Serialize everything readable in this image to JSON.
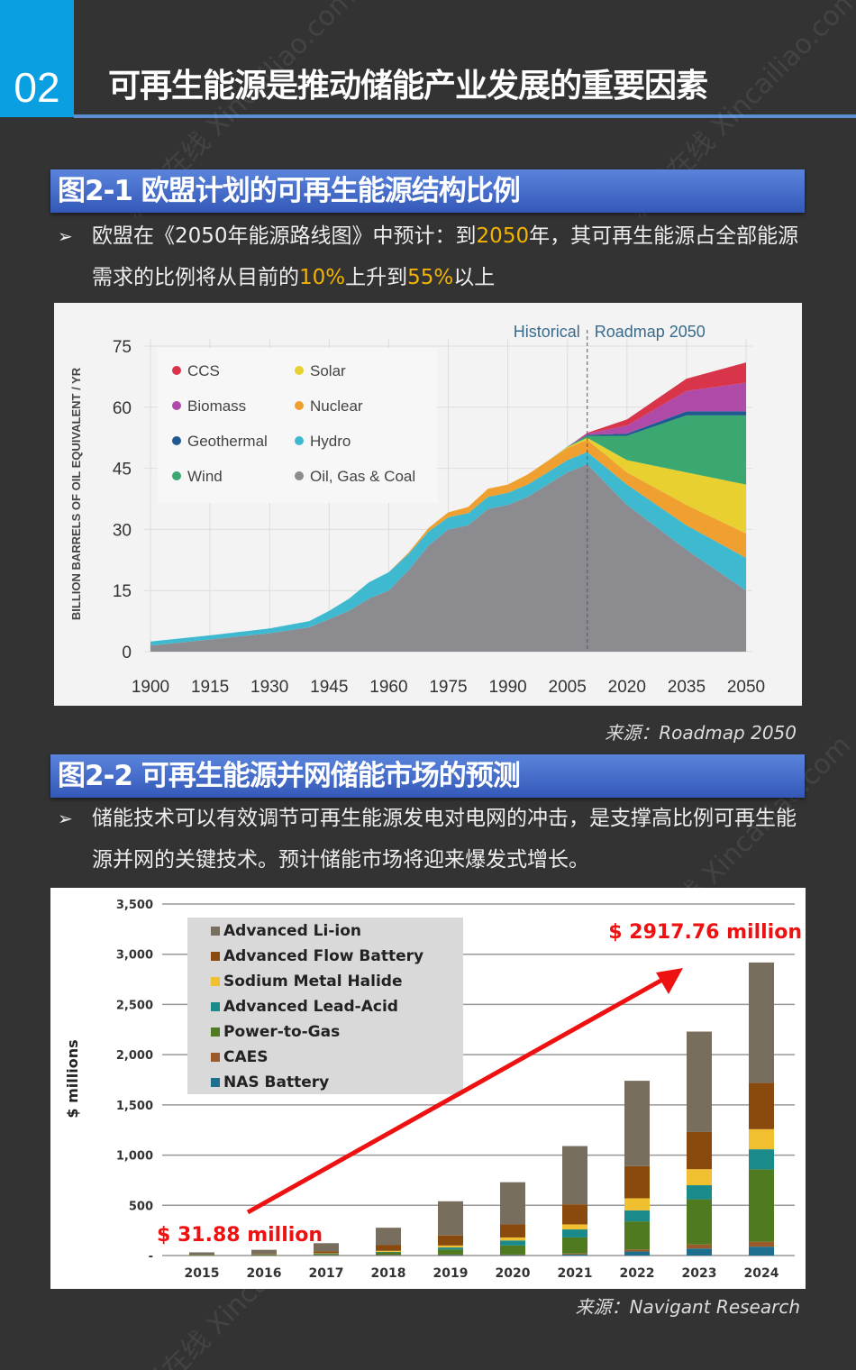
{
  "header": {
    "number": "02",
    "title": "可再生能源是推动储能产业发展的重要因素"
  },
  "watermark": "新材在线 Xincailiao.com",
  "section1": {
    "title": "图2-1 欧盟计划的可再生能源结构比例",
    "bullet": {
      "p1": "欧盟在《2050年能源路线图》中预计：到",
      "h1": "2050",
      "p2": "年，其可再生能源占全部能源需求的比例将从目前的",
      "h2": "10%",
      "p3": "上升到",
      "h3": "55%",
      "p4": "以上"
    },
    "source": "来源：Roadmap 2050"
  },
  "section2": {
    "title": "图2-2 可再生能源并网储能市场的预测",
    "bullet": "储能技术可以有效调节可再生能源发电对电网的冲击，是支撑高比例可再生能源并网的关键技术。预计储能市场将迎来爆发式增长。",
    "source": "来源：Navigant Research"
  },
  "highlight_color": "#f2b400",
  "chart_data": [
    {
      "type": "area",
      "stacked": true,
      "ylabel": "BILLION BARRELS OF OIL EQUIVALENT / YR",
      "ylim": [
        0,
        75
      ],
      "yticks": [
        0,
        15,
        30,
        45,
        60,
        75
      ],
      "xticks": [
        1900,
        1915,
        1930,
        1945,
        1960,
        1975,
        1990,
        2005,
        2020,
        2035,
        2050
      ],
      "xlim": [
        1900,
        2050
      ],
      "grid": true,
      "legend": "top-left",
      "annotations": {
        "left": "Historical",
        "right": "Roadmap 2050",
        "divider_year": 2010
      },
      "x": [
        1900,
        1915,
        1930,
        1940,
        1945,
        1950,
        1955,
        1960,
        1965,
        1970,
        1975,
        1980,
        1985,
        1990,
        1995,
        2000,
        2005,
        2010,
        2020,
        2035,
        2050
      ],
      "series": [
        {
          "name": "Oil, Gas & Coal",
          "color": "#8c8c90",
          "values": [
            1.5,
            3,
            4.5,
            6,
            8,
            10,
            13,
            15,
            20,
            26,
            30,
            31,
            35,
            36,
            38,
            41,
            44,
            46,
            36,
            25,
            15
          ]
        },
        {
          "name": "Hydro",
          "color": "#3fb9d0",
          "values": [
            1,
            1,
            1.2,
            1.5,
            2,
            3,
            4,
            4.5,
            4,
            3.5,
            3,
            3,
            3,
            3,
            3,
            3,
            3,
            3,
            5,
            6,
            8
          ]
        },
        {
          "name": "Nuclear",
          "color": "#f0a030",
          "values": [
            0,
            0,
            0,
            0,
            0,
            0,
            0,
            0,
            0.3,
            0.8,
            1.2,
            1.5,
            2,
            2,
            2.5,
            2.8,
            3,
            3,
            3,
            5,
            6
          ]
        },
        {
          "name": "Solar",
          "color": "#e8d030",
          "values": [
            0,
            0,
            0,
            0,
            0,
            0,
            0,
            0,
            0,
            0,
            0,
            0,
            0,
            0,
            0,
            0,
            0.2,
            0.5,
            3,
            8,
            12
          ]
        },
        {
          "name": "Wind",
          "color": "#3aa870",
          "values": [
            0,
            0,
            0,
            0,
            0,
            0,
            0,
            0,
            0,
            0,
            0,
            0,
            0,
            0,
            0,
            0,
            0.1,
            0.5,
            6,
            14,
            17
          ]
        },
        {
          "name": "Geothermal",
          "color": "#1f5a90",
          "values": [
            0,
            0,
            0,
            0,
            0,
            0,
            0,
            0,
            0,
            0,
            0,
            0,
            0,
            0,
            0,
            0,
            0,
            0.2,
            0.5,
            1,
            1
          ]
        },
        {
          "name": "Biomass",
          "color": "#b04aa8",
          "values": [
            0,
            0,
            0,
            0,
            0,
            0,
            0,
            0,
            0,
            0,
            0,
            0,
            0,
            0,
            0,
            0,
            0,
            0.3,
            2,
            5,
            7
          ]
        },
        {
          "name": "CCS",
          "color": "#d8344a",
          "values": [
            0,
            0,
            0,
            0,
            0,
            0,
            0,
            0,
            0,
            0,
            0,
            0,
            0,
            0,
            0,
            0,
            0,
            0.2,
            1.5,
            3,
            5
          ]
        }
      ],
      "legend_order": [
        "CCS",
        "Solar",
        "Biomass",
        "Nuclear",
        "Geothermal",
        "Hydro",
        "Wind",
        "Oil, Gas & Coal"
      ]
    },
    {
      "type": "bar",
      "stacked": true,
      "ylabel": "$ millions",
      "ylim": [
        0,
        3500
      ],
      "yticks": [
        "-",
        "500",
        "1,000",
        "1,500",
        "2,000",
        "2,500",
        "3,000",
        "3,500"
      ],
      "grid": true,
      "legend": "top-left",
      "categories": [
        "2015",
        "2016",
        "2017",
        "2018",
        "2019",
        "2020",
        "2021",
        "2022",
        "2023",
        "2024"
      ],
      "series": [
        {
          "name": "NAS Battery",
          "color": "#1e6e90",
          "values": [
            1,
            2,
            3,
            3,
            5,
            5,
            10,
            40,
            70,
            88
          ]
        },
        {
          "name": "CAES",
          "color": "#9a5a2a",
          "values": [
            1,
            2,
            3,
            4,
            5,
            5,
            10,
            20,
            40,
            50
          ]
        },
        {
          "name": "Power-to-Gas",
          "color": "#4f7a20",
          "values": [
            3,
            5,
            10,
            25,
            50,
            90,
            160,
            280,
            450,
            720
          ]
        },
        {
          "name": "Advanced Lead-Acid",
          "color": "#1a8a8a",
          "values": [
            1,
            2,
            4,
            5,
            20,
            50,
            80,
            110,
            140,
            200
          ]
        },
        {
          "name": "Sodium Metal Halide",
          "color": "#f0c030",
          "values": [
            1,
            1,
            3,
            10,
            20,
            30,
            50,
            120,
            160,
            200
          ]
        },
        {
          "name": "Advanced Flow Battery",
          "color": "#8b4a0d",
          "values": [
            2,
            5,
            20,
            60,
            100,
            130,
            200,
            320,
            370,
            460
          ]
        },
        {
          "name": "Advanced Li-ion",
          "color": "#786e5e",
          "values": [
            22.88,
            40,
            80,
            170,
            340,
            420,
            580,
            850,
            1000,
            1200
          ]
        }
      ],
      "legend_order": [
        "Advanced Li-ion",
        "Advanced Flow Battery",
        "Sodium Metal Halide",
        "Advanced Lead-Acid",
        "Power-to-Gas",
        "CAES",
        "NAS Battery"
      ],
      "annotations": {
        "start": "$ 31.88 million",
        "end": "$ 2917.76 million",
        "color": "#ee1111"
      }
    }
  ]
}
